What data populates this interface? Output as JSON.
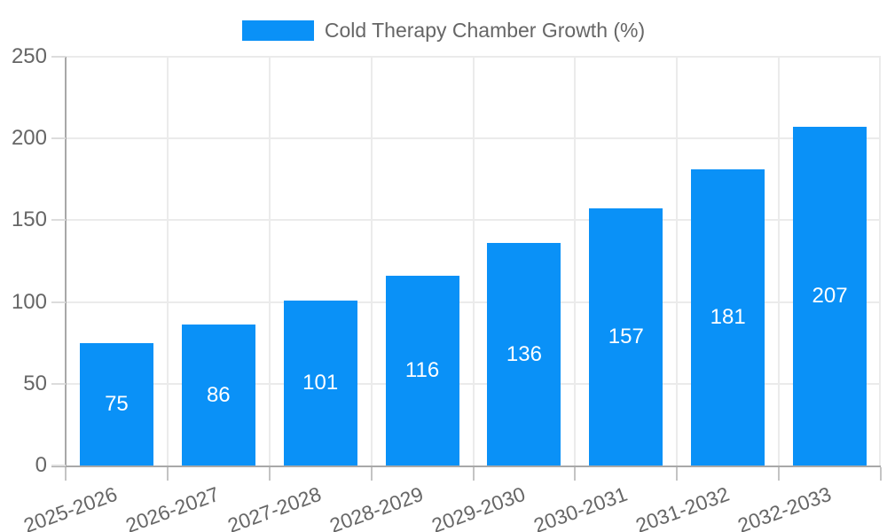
{
  "legend": {
    "label": "Cold Therapy Chamber Growth (%)"
  },
  "chart_data": {
    "type": "bar",
    "title": "",
    "legend": [
      "Cold Therapy Chamber Growth (%)"
    ],
    "legend_position": "top",
    "categories": [
      "2025-2026",
      "2026-2027",
      "2027-2028",
      "2028-2029",
      "2029-2030",
      "2030-2031",
      "2031-2032",
      "2032-2033"
    ],
    "values": [
      75,
      86,
      101,
      116,
      136,
      157,
      181,
      207
    ],
    "xlabel": "",
    "ylabel": "",
    "ylim": [
      0,
      250
    ],
    "yticks": [
      0,
      50,
      100,
      150,
      200,
      250
    ],
    "grid": true,
    "bar_labels_inside": true,
    "colors": {
      "bar": "#0a91f7",
      "bar_value_text": "#ffffff",
      "axis_text": "#666666",
      "gridline": "#ebebeb",
      "axis_line": "#a8a8a8",
      "background": "#ffffff"
    }
  }
}
